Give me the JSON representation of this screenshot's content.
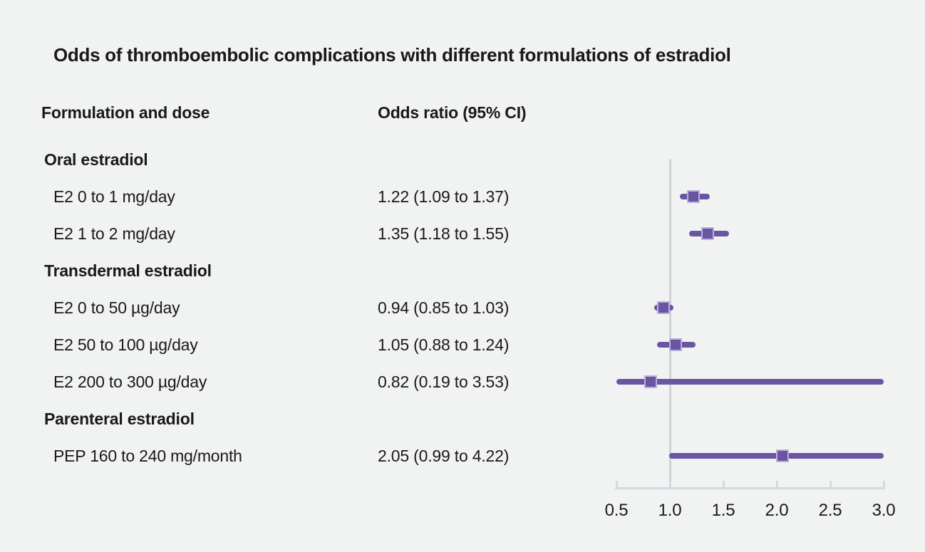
{
  "title": "Odds of thromboembolic complications with different formulations of estradiol",
  "columns": {
    "formulation": "Formulation and dose",
    "odds_ratio": "Odds ratio (95% CI)"
  },
  "colors": {
    "background": "#f1f2f2",
    "text": "#191919",
    "marker_fill": "#6a55a3",
    "marker_border": "#bdaeda",
    "ci_line": "#6a55a3",
    "reference_line": "#ccd3db",
    "axis_line": "#d4dae1"
  },
  "chart_data": {
    "type": "forest",
    "title": "Odds of thromboembolic complications with different formulations of estradiol",
    "xlabel": "",
    "ylabel": "",
    "x_axis": {
      "min": 0.5,
      "max": 3.0,
      "scale": "linear",
      "ticks": [
        0.5,
        1.0,
        1.5,
        2.0,
        2.5,
        3.0
      ],
      "tick_labels": [
        "0.5",
        "1.0",
        "1.5",
        "2.0",
        "2.5",
        "3.0"
      ],
      "reference_line": 1.0
    },
    "groups": [
      {
        "label": "Oral estradiol",
        "rows": [
          {
            "label": "E2 0 to 1 mg/day",
            "or_text": "1.22 (1.09 to 1.37)",
            "or": 1.22,
            "ci_low": 1.09,
            "ci_high": 1.37
          },
          {
            "label": "E2 1 to 2 mg/day",
            "or_text": "1.35 (1.18 to 1.55)",
            "or": 1.35,
            "ci_low": 1.18,
            "ci_high": 1.55
          }
        ]
      },
      {
        "label": "Transdermal estradiol",
        "rows": [
          {
            "label": "E2 0 to 50 µg/day",
            "or_text": "0.94 (0.85 to 1.03)",
            "or": 0.94,
            "ci_low": 0.85,
            "ci_high": 1.03
          },
          {
            "label": "E2 50 to 100 µg/day",
            "or_text": "1.05 (0.88 to 1.24)",
            "or": 1.05,
            "ci_low": 0.88,
            "ci_high": 1.24
          },
          {
            "label": "E2 200 to 300 µg/day",
            "or_text": "0.82 (0.19 to 3.53)",
            "or": 0.82,
            "ci_low": 0.19,
            "ci_high": 3.53
          }
        ]
      },
      {
        "label": "Parenteral estradiol",
        "rows": [
          {
            "label": "PEP 160 to 240 mg/month",
            "or_text": "2.05 (0.99 to 4.22)",
            "or": 2.05,
            "ci_low": 0.99,
            "ci_high": 4.22
          }
        ]
      }
    ]
  }
}
